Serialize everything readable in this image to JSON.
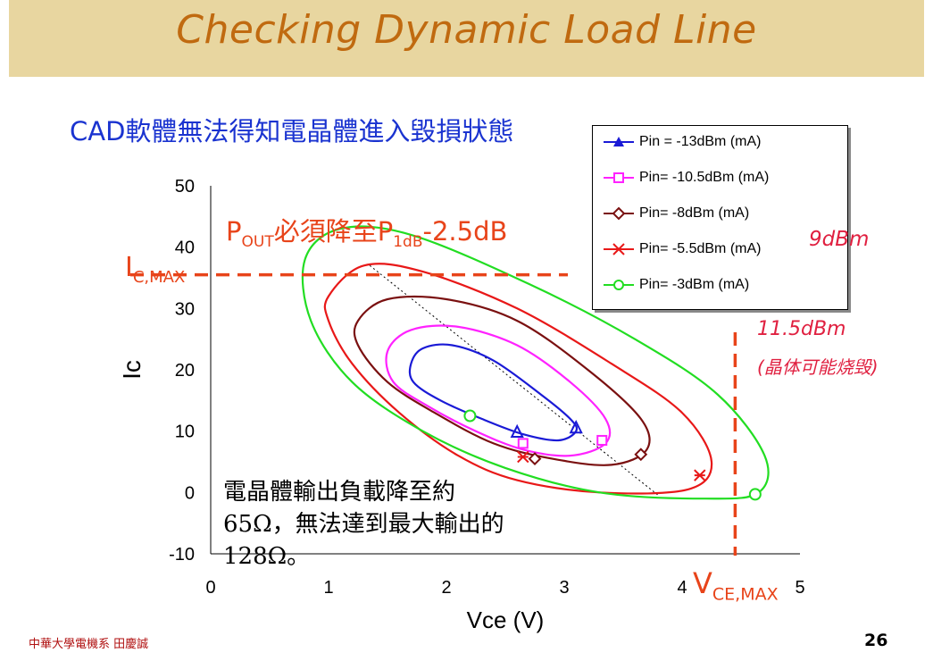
{
  "slide": {
    "title": "Checking Dynamic Load Line",
    "subtitle": "CAD軟體無法得知電晶體進入毀損狀態",
    "footer_left": "中華大學電機系 田慶誠",
    "page_number": "26"
  },
  "annotations": {
    "pout_main": "P",
    "pout_sub1": "OUT",
    "pout_mid": "必須降至P",
    "pout_sub2": "1dB",
    "pout_end": "-2.5dB",
    "icmax_main": "I",
    "icmax_sub": "C,MAX",
    "vcemax_main": "V",
    "vcemax_sub": "CE,MAX",
    "note_line1": "電晶體輸出負載降至約",
    "note_line2": "65Ω，無法達到最大輸出的",
    "note_line3": "128Ω。",
    "hand_9dbm": "9dBm",
    "hand_11_5dbm": "11.5dBm",
    "hand_burn": "(晶体可能烧毁)"
  },
  "colors": {
    "blue": "#1a1ad6",
    "magenta": "#ff22ff",
    "darkred": "#7a1010",
    "red": "#e81818",
    "green": "#22dd22",
    "orange": "#e8441a"
  },
  "chart_data": {
    "type": "line",
    "title": "",
    "xlabel": "Vce (V)",
    "ylabel": "Ic",
    "xlim": [
      0,
      5
    ],
    "ylim": [
      -10,
      50
    ],
    "x_ticks": [
      "0",
      "1",
      "2",
      "3",
      "4",
      "5"
    ],
    "y_ticks": [
      "-10",
      "0",
      "10",
      "20",
      "30",
      "40",
      "50"
    ],
    "legend_position": "top-right",
    "ic_max": 35.5,
    "vce_max": 4.45,
    "series": [
      {
        "name": "Pin = -13dBm (mA)",
        "marker": "triangle",
        "loop": [
          [
            1.7,
            21
          ],
          [
            1.8,
            23.5
          ],
          [
            2.05,
            24
          ],
          [
            2.4,
            21.5
          ],
          [
            2.8,
            16
          ],
          [
            3.05,
            12
          ],
          [
            3.1,
            10
          ],
          [
            2.95,
            8.5
          ],
          [
            2.65,
            9.5
          ],
          [
            2.3,
            12
          ],
          [
            1.95,
            15
          ],
          [
            1.72,
            18
          ],
          [
            1.7,
            21
          ]
        ],
        "markers": [
          [
            2.6,
            9.8
          ],
          [
            3.1,
            10.5
          ]
        ]
      },
      {
        "name": "Pin= -10.5dBm (mA)",
        "marker": "square",
        "loop": [
          [
            1.5,
            23
          ],
          [
            1.7,
            26.5
          ],
          [
            2.1,
            27
          ],
          [
            2.6,
            24
          ],
          [
            3.05,
            18
          ],
          [
            3.35,
            12
          ],
          [
            3.35,
            8
          ],
          [
            3.05,
            6
          ],
          [
            2.65,
            7
          ],
          [
            2.25,
            10
          ],
          [
            1.85,
            14
          ],
          [
            1.55,
            18
          ],
          [
            1.5,
            23
          ]
        ],
        "markers": [
          [
            2.65,
            8
          ],
          [
            3.32,
            8.5
          ]
        ]
      },
      {
        "name": "Pin= -8dBm (mA)",
        "marker": "diamond",
        "loop": [
          [
            1.25,
            28
          ],
          [
            1.5,
            31.5
          ],
          [
            2.0,
            31.5
          ],
          [
            2.6,
            28
          ],
          [
            3.2,
            20
          ],
          [
            3.65,
            12
          ],
          [
            3.7,
            7
          ],
          [
            3.4,
            4.5
          ],
          [
            2.9,
            5.5
          ],
          [
            2.4,
            8
          ],
          [
            1.9,
            13
          ],
          [
            1.5,
            18
          ],
          [
            1.25,
            24
          ],
          [
            1.25,
            28
          ]
        ],
        "markers": [
          [
            2.75,
            5.5
          ],
          [
            3.65,
            6.2
          ]
        ]
      },
      {
        "name": "Pin= -5.5dBm (mA)",
        "marker": "star",
        "loop": [
          [
            1.0,
            32
          ],
          [
            1.3,
            37
          ],
          [
            1.8,
            36
          ],
          [
            2.6,
            30
          ],
          [
            3.4,
            21
          ],
          [
            4.0,
            13
          ],
          [
            4.25,
            5
          ],
          [
            4.05,
            0.5
          ],
          [
            3.3,
            0
          ],
          [
            2.6,
            2
          ],
          [
            2.1,
            6
          ],
          [
            1.6,
            13
          ],
          [
            1.2,
            21
          ],
          [
            1.0,
            28
          ],
          [
            1.0,
            32
          ]
        ],
        "markers": [
          [
            2.65,
            5.8
          ],
          [
            4.15,
            2.8
          ]
        ]
      },
      {
        "name": "Pin= -3dBm (mA)",
        "marker": "circle",
        "loop": [
          [
            0.8,
            38
          ],
          [
            1.1,
            43
          ],
          [
            1.7,
            42
          ],
          [
            2.7,
            34
          ],
          [
            3.6,
            25
          ],
          [
            4.3,
            16
          ],
          [
            4.7,
            6
          ],
          [
            4.65,
            0
          ],
          [
            4.2,
            -1
          ],
          [
            3.3,
            0
          ],
          [
            2.5,
            4
          ],
          [
            1.8,
            10
          ],
          [
            1.2,
            18
          ],
          [
            0.85,
            28
          ],
          [
            0.8,
            38
          ]
        ],
        "markers": [
          [
            2.2,
            12.5
          ],
          [
            4.62,
            -0.3
          ]
        ]
      }
    ],
    "load_line": [
      [
        1.35,
        37
      ],
      [
        3.8,
        -0.5
      ]
    ]
  }
}
